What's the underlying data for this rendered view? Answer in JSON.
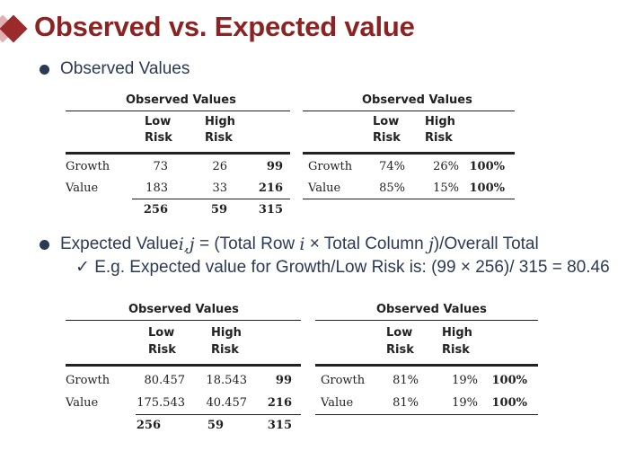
{
  "title": "Observed vs. Expected value",
  "bullet1": "Observed Values",
  "bullet2": {
    "prefix": "Expected Value",
    "ij": "i,j",
    "mid1": " = (Total Row ",
    "i": "i",
    "mid2": " × Total Column ",
    "j": "j",
    "suffix": ")/Overall Total"
  },
  "sub_bullet": "✓ E.g. Expected value for Growth/Low Risk is: (99 × 256)/ 315 = 80.46",
  "tables": {
    "t1": {
      "title": "Observed Values",
      "col1": [
        "Low",
        "Risk"
      ],
      "col2": [
        "High",
        "Risk"
      ],
      "rows": [
        {
          "label": "Growth",
          "a": "73",
          "b": "26",
          "t": "99"
        },
        {
          "label": "Value",
          "a": "183",
          "b": "33",
          "t": "216"
        }
      ],
      "totals": {
        "a": "256",
        "b": "59",
        "t": "315"
      }
    },
    "t2": {
      "title": "Observed Values",
      "col1": [
        "Low",
        "Risk"
      ],
      "col2": [
        "High",
        "Risk"
      ],
      "rows": [
        {
          "label": "Growth",
          "a": "74%",
          "b": "26%",
          "t": "100%"
        },
        {
          "label": "Value",
          "a": "85%",
          "b": "15%",
          "t": "100%"
        }
      ]
    },
    "t3": {
      "title": "Observed Values",
      "col1": [
        "Low",
        "Risk"
      ],
      "col2": [
        "High",
        "Risk"
      ],
      "rows": [
        {
          "label": "Growth",
          "a": "80.457",
          "b": "18.543",
          "t": "99"
        },
        {
          "label": "Value",
          "a": "175.543",
          "b": "40.457",
          "t": "216"
        }
      ],
      "totals": {
        "a": "256",
        "b": "59",
        "t": "315"
      }
    },
    "t4": {
      "title": "Observed Values",
      "col1": [
        "Low",
        "Risk"
      ],
      "col2": [
        "High",
        "Risk"
      ],
      "rows": [
        {
          "label": "Growth",
          "a": "81%",
          "b": "19%",
          "t": "100%"
        },
        {
          "label": "Value",
          "a": "81%",
          "b": "19%",
          "t": "100%"
        }
      ]
    }
  }
}
